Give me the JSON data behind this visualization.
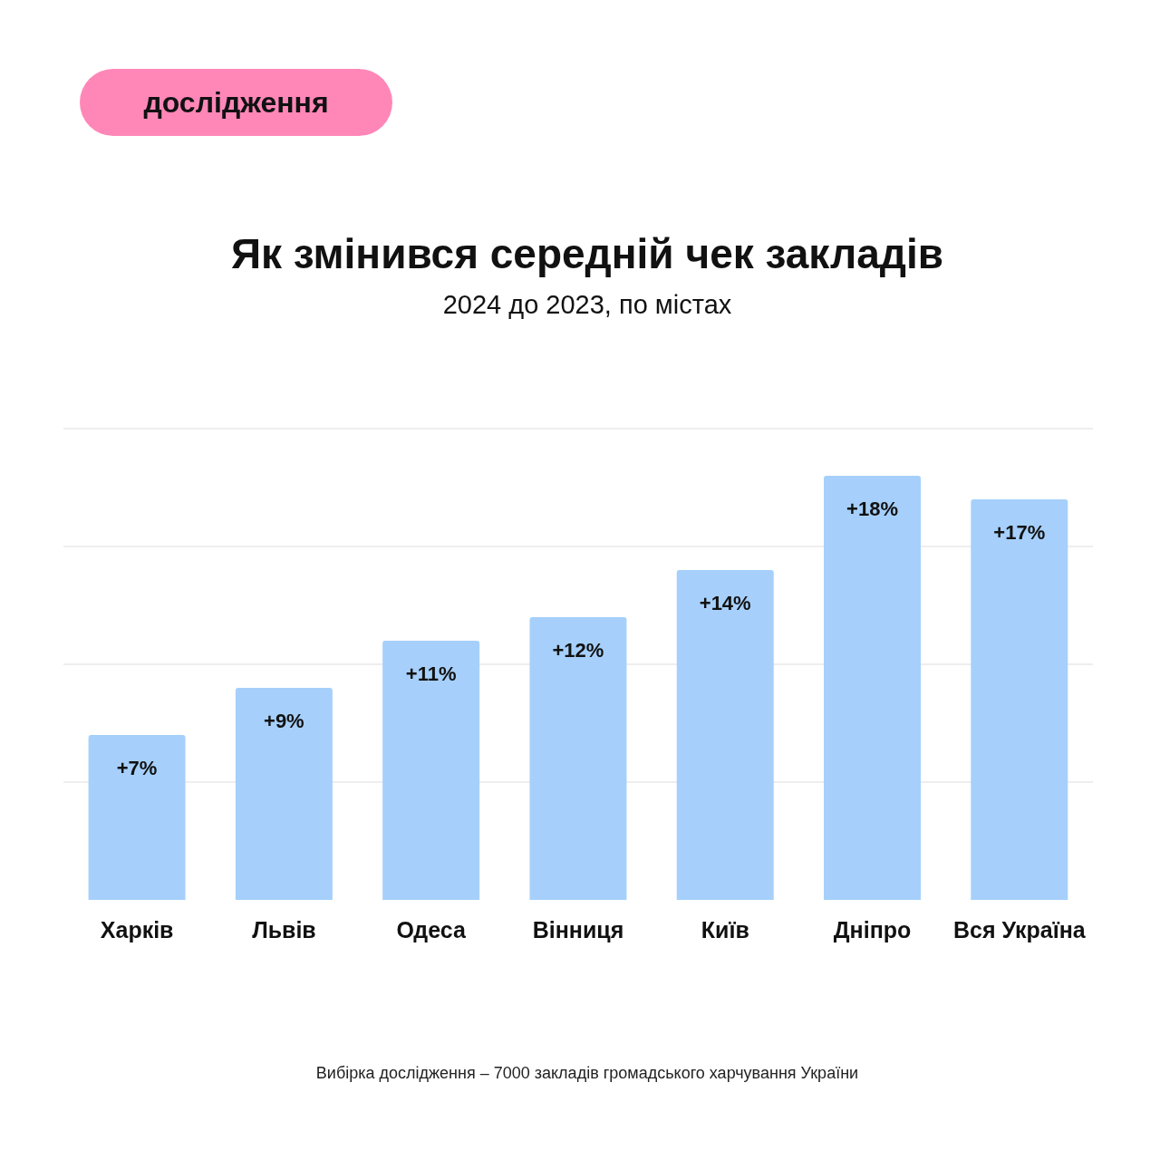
{
  "chart_data": {
    "type": "bar",
    "title": "Як змінився середній чек закладів",
    "subtitle": "2024 до 2023, по містах",
    "annotations": [
      "дослідження",
      "Вибірка дослідження – 7000 закладів громадського харчування України"
    ],
    "categories": [
      "Харків",
      "Львів",
      "Одеса",
      "Вінниця",
      "Київ",
      "Дніпро",
      "Вся Україна"
    ],
    "values": [
      7,
      9,
      11,
      12,
      14,
      18,
      17
    ],
    "value_labels": [
      "+7%",
      "+9%",
      "+11%",
      "+12%",
      "+14%",
      "+18%",
      "+17%"
    ],
    "colors": [
      "#a6d0fb",
      "#a6d0fb",
      "#a6d0fb",
      "#a6d0fb",
      "#a6d0fb",
      "#a6d0fb",
      "#a6d0fb"
    ],
    "ylim": [
      0,
      20
    ],
    "yticks": [
      {
        "value": 5,
        "label": null
      },
      {
        "value": 10,
        "label": null
      },
      {
        "value": 15,
        "label": null
      },
      {
        "value": 20,
        "label": null
      }
    ],
    "grid": "y",
    "tick_labels": "x",
    "legend": false
  }
}
